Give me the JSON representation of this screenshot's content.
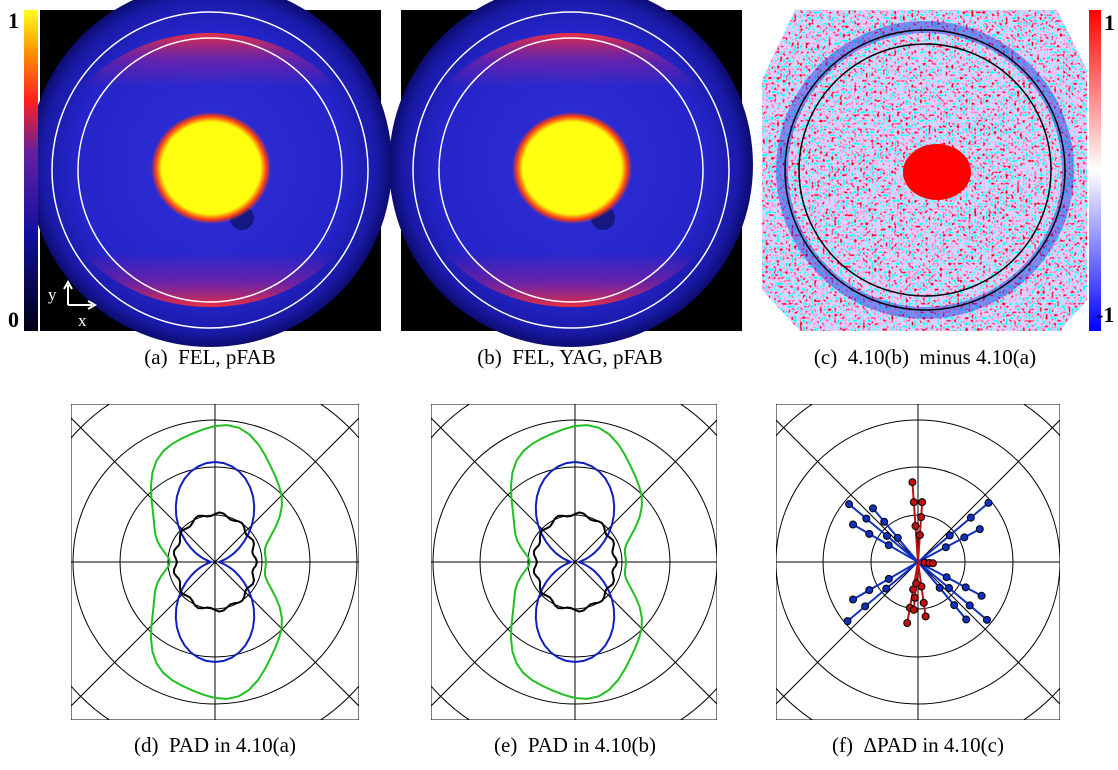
{
  "panels": [
    {
      "caption": "(a)  FEL, pFAB"
    },
    {
      "caption": "(b)  FEL, YAG, pFAB"
    },
    {
      "caption": "(c)  4.10(b)  minus 4.10(a)"
    },
    {
      "caption": "(d)  PAD in 4.10(a)"
    },
    {
      "caption": "(e)  PAD in 4.10(b)"
    },
    {
      "caption": "(f)  ΔPAD in 4.10(c)"
    }
  ],
  "colorbars": [
    {
      "max": "1",
      "min": "0"
    },
    {
      "max": "1",
      "min": "-1"
    }
  ],
  "axis_labels": {
    "x": "x",
    "y": "y"
  }
}
